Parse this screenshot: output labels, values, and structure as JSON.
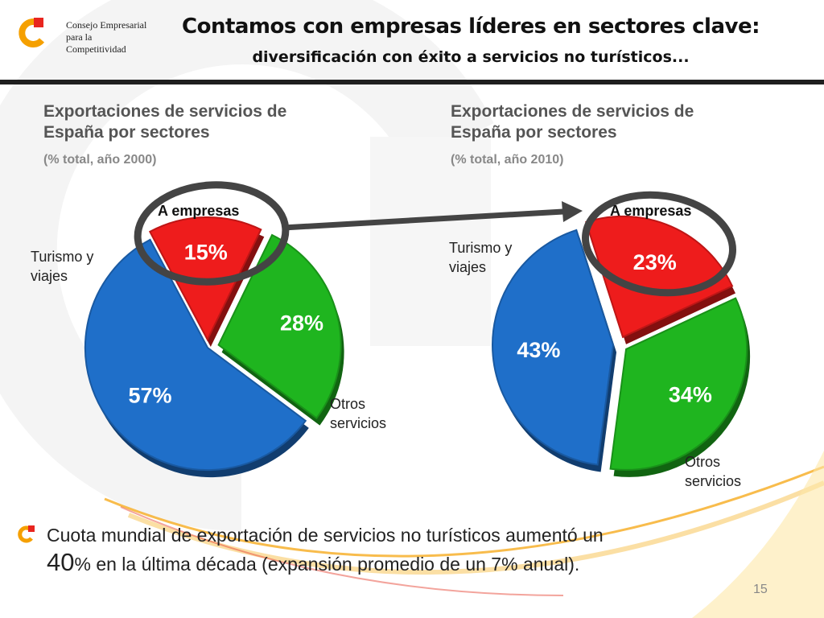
{
  "header": {
    "title": "Contamos con empresas líderes en sectores clave:",
    "subtitle": "diversificación con éxito a servicios no turísticos..."
  },
  "logo": {
    "line1": "Consejo Empresarial",
    "line2": "para la",
    "line3": "Competitividad"
  },
  "colors": {
    "blue": "#1f6fc9",
    "red": "#ee1c1c",
    "green": "#1fb51f",
    "ring": "#444444",
    "accent": "#f5a000"
  },
  "chart_data": [
    {
      "type": "pie",
      "title_line1": "Exportaciones de servicios de",
      "title_line2": "España por sectores",
      "subtitle": "(% total, año 2000)",
      "slices": [
        {
          "name": "A empresas",
          "value": 15,
          "label": "15%"
        },
        {
          "name": "Otros servicios",
          "value": 28,
          "label": "28%"
        },
        {
          "name": "Turismo y viajes",
          "value": 57,
          "label": "57%"
        }
      ]
    },
    {
      "type": "pie",
      "title_line1": "Exportaciones de servicios de",
      "title_line2": "España por sectores",
      "subtitle": "(% total, año 2010)",
      "slices": [
        {
          "name": "A empresas",
          "value": 23,
          "label": "23%"
        },
        {
          "name": "Otros servicios",
          "value": 34,
          "label": "34%"
        },
        {
          "name": "Turismo y viajes",
          "value": 43,
          "label": "43%"
        }
      ]
    }
  ],
  "labels": {
    "empresas": "A empresas",
    "turismo_1": "Turismo y",
    "turismo_2": "viajes",
    "otros_1": "Otros",
    "otros_2": "servicios"
  },
  "footnote": {
    "part1": "Cuota mundial de exportación de servicios no turísticos aumentó un",
    "big": "40",
    "part2": "% en la última década (expansión promedio de un 7% anual)."
  },
  "page_number": "15"
}
